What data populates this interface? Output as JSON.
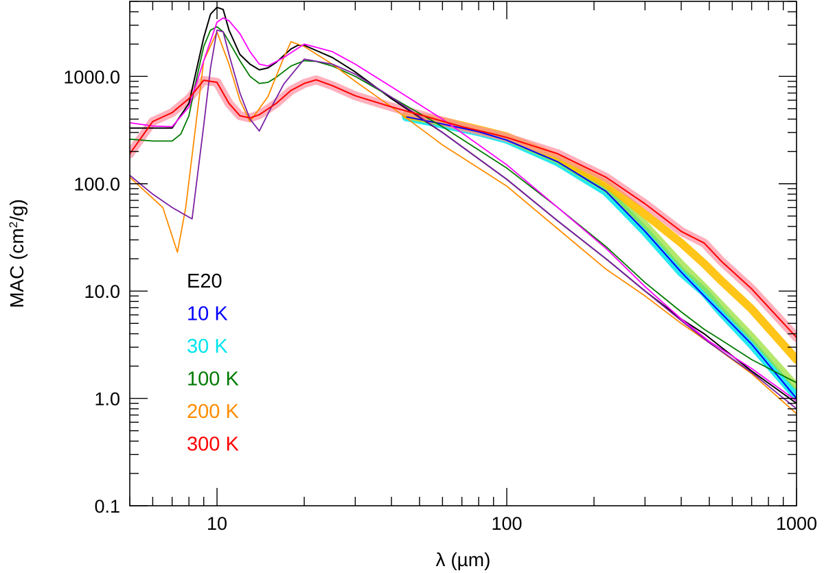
{
  "chart_data": {
    "type": "line",
    "title": "",
    "xlabel": "λ (µm)",
    "ylabel_prefix": "MAC (cm",
    "ylabel_sup": "2",
    "ylabel_suffix": "/g)",
    "xscale": "log",
    "yscale": "log",
    "xlim": [
      5,
      1000
    ],
    "ylim": [
      0.1,
      5000
    ],
    "x_ticks": [
      {
        "value": 10,
        "label": "10"
      },
      {
        "value": 100,
        "label": "100"
      },
      {
        "value": 1000,
        "label": "1000"
      }
    ],
    "y_ticks": [
      {
        "value": 0.1,
        "label": "0.1"
      },
      {
        "value": 1,
        "label": "1.0"
      },
      {
        "value": 10,
        "label": "10.0"
      },
      {
        "value": 100,
        "label": "100.0"
      },
      {
        "value": 1000,
        "label": "1000.0"
      }
    ],
    "legend": {
      "placement": "lower-left",
      "entries": [
        {
          "label": "E20",
          "color": "#000000"
        },
        {
          "label": "10 K",
          "color": "#0000ff"
        },
        {
          "label": "30 K",
          "color": "#00e5ee"
        },
        {
          "label": "100 K",
          "color": "#007a00"
        },
        {
          "label": "200 K",
          "color": "#ff8c00"
        },
        {
          "label": "300 K",
          "color": "#ff0000"
        }
      ]
    },
    "bands": [
      {
        "name": "30 K band",
        "color": "#00e5ee",
        "opacity": 0.85,
        "width": 13,
        "x": [
          45,
          60,
          80,
          100,
          150,
          220,
          300,
          400,
          480,
          550,
          700,
          1000
        ],
        "y": [
          420,
          360,
          305,
          260,
          160,
          85,
          36,
          15,
          9.8,
          6.4,
          3.2,
          1.05
        ]
      },
      {
        "name": "10 K band",
        "color": "#9be03c",
        "opacity": 0.75,
        "width": 10,
        "x": [
          45,
          60,
          80,
          100,
          150,
          220,
          300,
          400,
          480,
          550,
          700,
          1000
        ],
        "y": [
          430,
          370,
          315,
          265,
          165,
          90,
          42,
          18,
          11,
          7.5,
          3.8,
          1.3
        ]
      },
      {
        "name": "200 K band",
        "color": "#ffbf00",
        "opacity": 0.9,
        "width": 12,
        "x": [
          45,
          60,
          80,
          100,
          150,
          220,
          300,
          400,
          480,
          550,
          700,
          1000
        ],
        "y": [
          440,
          385,
          320,
          275,
          175,
          100,
          52,
          28,
          18,
          12.5,
          6.8,
          2.3
        ]
      },
      {
        "name": "300 K band",
        "color": "#ff8fa0",
        "opacity": 0.7,
        "width": 13,
        "x": [
          5,
          6,
          7,
          8,
          9,
          10,
          11,
          12,
          13,
          14,
          16,
          18,
          20,
          22,
          25,
          30,
          40,
          50,
          70,
          90,
          100,
          150,
          220,
          300,
          400,
          480,
          550,
          700,
          1000
        ],
        "y": [
          190,
          380,
          460,
          620,
          920,
          880,
          560,
          430,
          410,
          440,
          560,
          740,
          860,
          930,
          820,
          660,
          520,
          440,
          340,
          290,
          270,
          190,
          115,
          65,
          36,
          28,
          19,
          10.5,
          3.7
        ]
      }
    ],
    "series": [
      {
        "name": "E20",
        "color": "#000000",
        "width": 2,
        "x": [
          5,
          6,
          7,
          8,
          9,
          9.5,
          10,
          10.5,
          11,
          12,
          13,
          14,
          15,
          16,
          18,
          19,
          20,
          25,
          30,
          40,
          60,
          100,
          150,
          220,
          300,
          400,
          480,
          550,
          700,
          1000
        ],
        "y": [
          330,
          330,
          330,
          560,
          2300,
          3800,
          4400,
          4200,
          2700,
          1600,
          1300,
          1150,
          1200,
          1350,
          1800,
          1950,
          1950,
          1500,
          1100,
          620,
          300,
          110,
          45,
          20,
          10,
          5.5,
          4.0,
          3.0,
          1.8,
          0.9
        ]
      },
      {
        "name": "10 K",
        "color": "#0000ff",
        "width": 2,
        "x": [
          45,
          60,
          80,
          100,
          150,
          220,
          300,
          400,
          480,
          550,
          700,
          1000
        ],
        "y": [
          420,
          360,
          305,
          255,
          160,
          85,
          36,
          15,
          9.0,
          6.2,
          3.2,
          1.0
        ]
      },
      {
        "name": "100 K",
        "color": "#007a00",
        "width": 1.8,
        "x": [
          5,
          6,
          7,
          7.5,
          8,
          8.5,
          9,
          9.5,
          10,
          10.5,
          11,
          12,
          13,
          14,
          15,
          16,
          18,
          20,
          22,
          25,
          30,
          40,
          60,
          100,
          150,
          220,
          300,
          400,
          480,
          550,
          700,
          1000
        ],
        "y": [
          260,
          250,
          250,
          290,
          430,
          950,
          1900,
          2700,
          2900,
          2600,
          2100,
          1400,
          1000,
          860,
          880,
          980,
          1250,
          1400,
          1380,
          1250,
          1000,
          640,
          340,
          140,
          60,
          26,
          12,
          6.4,
          4.4,
          3.5,
          2.3,
          1.4
        ]
      },
      {
        "name": "200 K",
        "color": "#ff8c00",
        "width": 1.8,
        "x": [
          5,
          6.5,
          7.3,
          7.8,
          8.5,
          9,
          10,
          11,
          12,
          13,
          15,
          17,
          18,
          20,
          25,
          30,
          40,
          60,
          100,
          150,
          220,
          300,
          400,
          500,
          700,
          1000
        ],
        "y": [
          115,
          60,
          23,
          60,
          400,
          1400,
          2600,
          1300,
          600,
          380,
          650,
          1500,
          2100,
          1900,
          1300,
          900,
          520,
          230,
          95,
          38,
          16,
          9.0,
          5.0,
          3.3,
          1.7,
          0.72
        ]
      },
      {
        "name": "Purple",
        "color": "#7b1fa2",
        "width": 1.8,
        "x": [
          5,
          6,
          7,
          8.2,
          9,
          9.5,
          10,
          10.5,
          11,
          12,
          13,
          14,
          15,
          17,
          20,
          25,
          30,
          40,
          60,
          100,
          150,
          220,
          300,
          400,
          500,
          700,
          1000
        ],
        "y": [
          120,
          80,
          60,
          47,
          350,
          1200,
          2700,
          2600,
          1600,
          700,
          400,
          310,
          450,
          850,
          1450,
          1300,
          1050,
          640,
          300,
          110,
          45,
          20,
          10,
          5.3,
          3.3,
          1.75,
          0.8
        ]
      },
      {
        "name": "Magenta",
        "color": "#ff00ff",
        "width": 1.8,
        "x": [
          5,
          6,
          7,
          8,
          9,
          10,
          10.5,
          11,
          12,
          13,
          14,
          15,
          17,
          20,
          25,
          30,
          40,
          60,
          100,
          150,
          220,
          300,
          400,
          500,
          700,
          1000
        ],
        "y": [
          370,
          345,
          340,
          520,
          1400,
          3200,
          3500,
          3300,
          2500,
          1700,
          1300,
          1250,
          1500,
          2000,
          1700,
          1300,
          800,
          400,
          150,
          60,
          25,
          11,
          5.5,
          3.4,
          1.9,
          0.95
        ]
      },
      {
        "name": "300 K",
        "color": "#ff0000",
        "width": 2,
        "x": [
          5,
          6,
          7,
          8,
          9,
          10,
          11,
          12,
          13,
          14,
          16,
          18,
          20,
          22,
          25,
          30,
          40,
          50,
          70,
          90,
          100,
          150,
          220,
          300,
          400,
          480,
          550,
          700,
          1000
        ],
        "y": [
          190,
          380,
          460,
          620,
          920,
          880,
          560,
          430,
          410,
          440,
          560,
          740,
          860,
          930,
          820,
          660,
          520,
          440,
          340,
          290,
          270,
          190,
          115,
          65,
          36,
          28,
          19,
          10.5,
          3.7
        ]
      }
    ]
  }
}
